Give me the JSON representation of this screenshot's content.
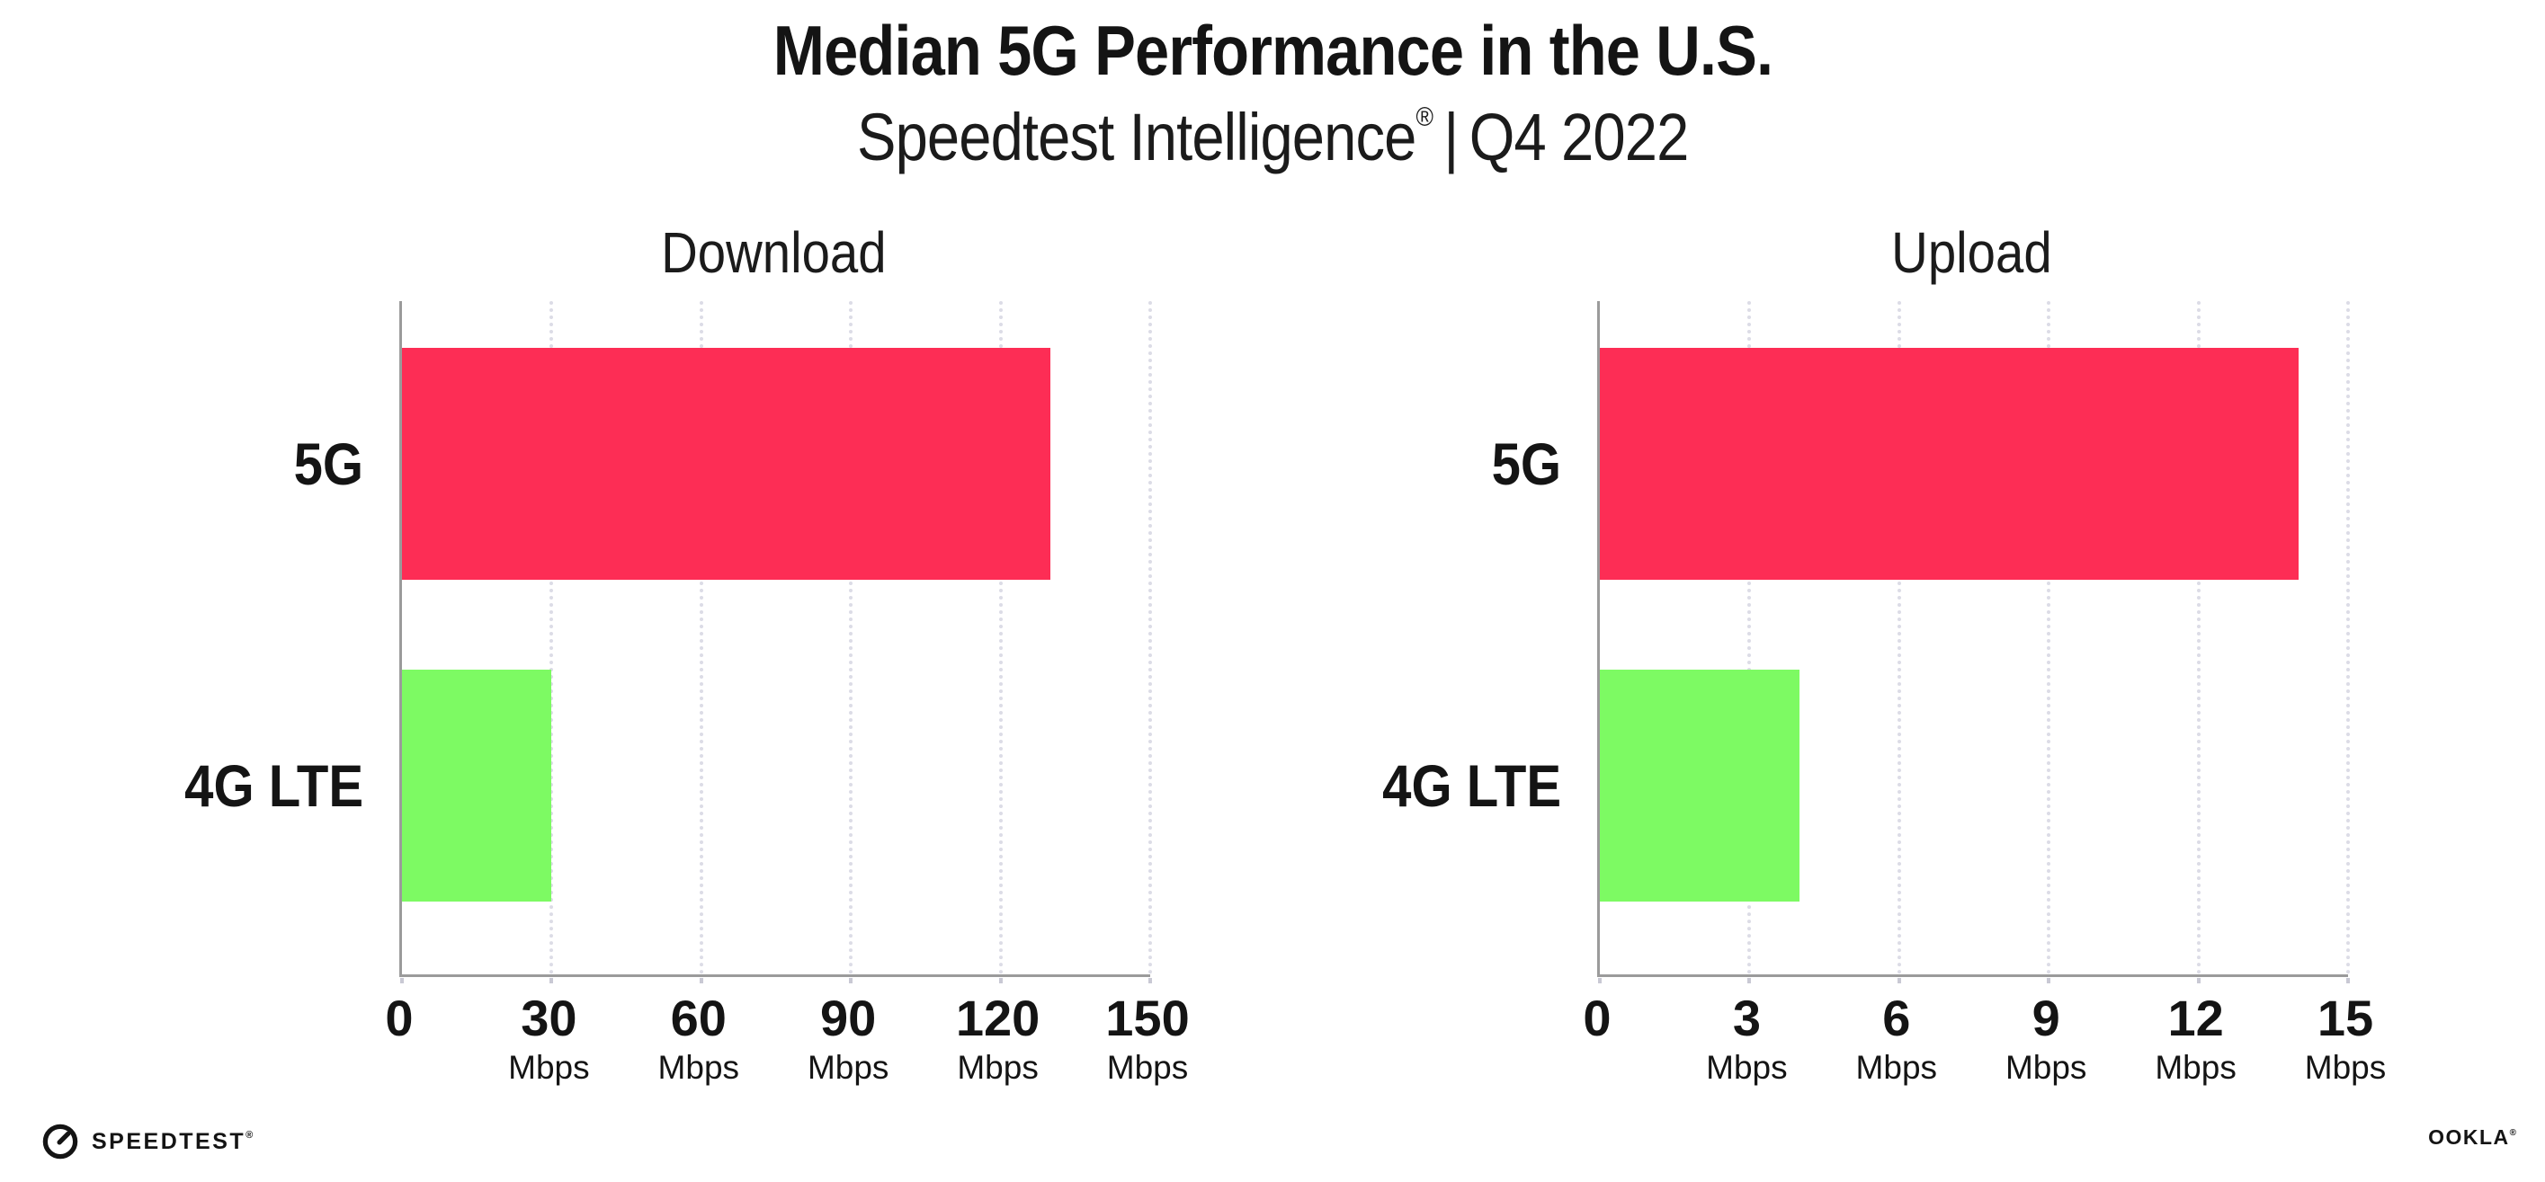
{
  "header": {
    "title": "Median 5G Performance in the U.S.",
    "subtitle_brand": "Speedtest Intelligence",
    "subtitle_reg": "®",
    "subtitle_sep": "|",
    "subtitle_period": "Q4 2022"
  },
  "chart_data": [
    {
      "type": "bar",
      "orientation": "horizontal",
      "title": "Download",
      "categories": [
        "5G",
        "4G LTE"
      ],
      "values": [
        130,
        30
      ],
      "unit": "Mbps",
      "xlim": [
        0,
        150
      ],
      "xticks": [
        0,
        30,
        60,
        90,
        120,
        150
      ],
      "bar_colors": [
        "#fd2d55",
        "#7dfa63"
      ],
      "grid": "dotted-vertical",
      "legend": "none"
    },
    {
      "type": "bar",
      "orientation": "horizontal",
      "title": "Upload",
      "categories": [
        "5G",
        "4G LTE"
      ],
      "values": [
        14,
        4
      ],
      "unit": "Mbps",
      "xlim": [
        0,
        15
      ],
      "xticks": [
        0,
        3,
        6,
        9,
        12,
        15
      ],
      "bar_colors": [
        "#fd2d55",
        "#7dfa63"
      ],
      "grid": "dotted-vertical",
      "legend": "none"
    }
  ],
  "footer": {
    "speedtest_label": "SPEEDTEST",
    "speedtest_reg": "®",
    "ookla_label": "OOKLA",
    "ookla_reg": "®"
  },
  "colors": {
    "bar_5g": "#fd2d55",
    "bar_4g_lte": "#7dfa63",
    "axis_line": "#9b9b9b",
    "gridline": "#dcdce6",
    "text": "#141414"
  }
}
